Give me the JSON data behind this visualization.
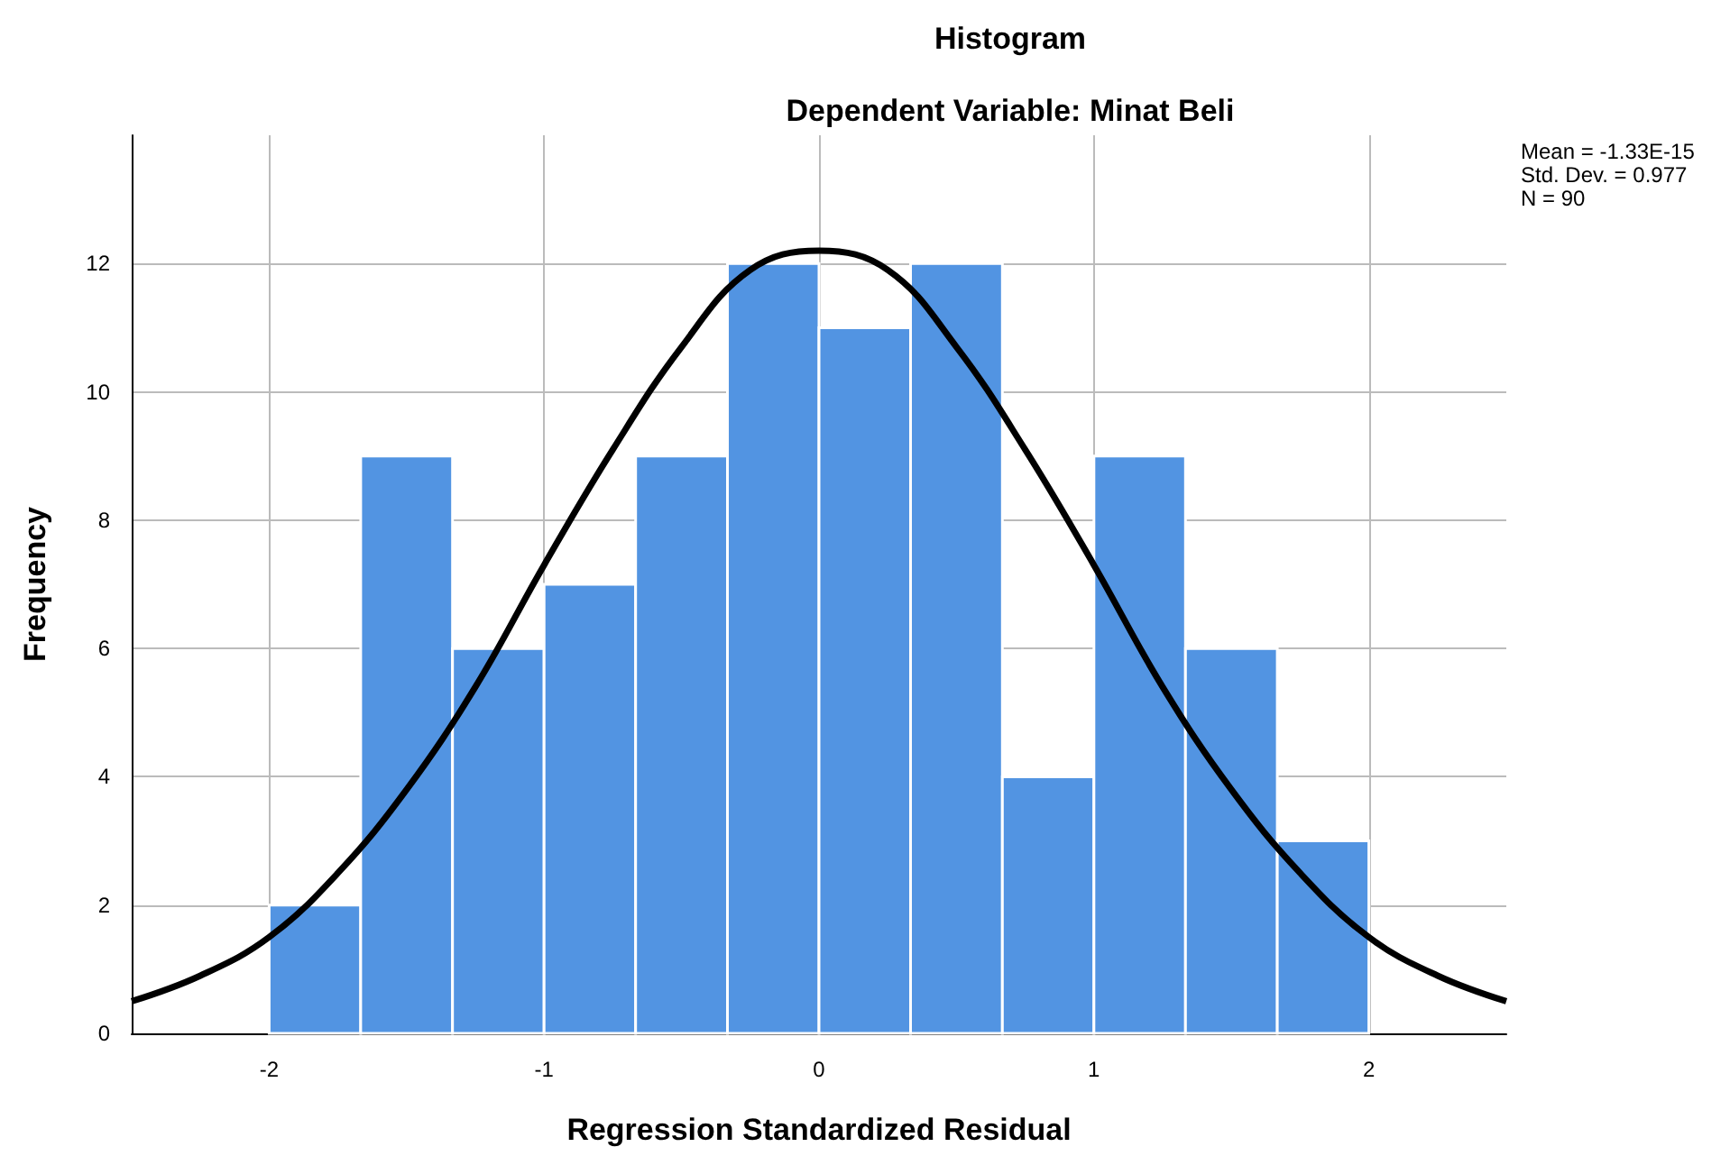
{
  "chart_data": {
    "type": "histogram",
    "title": "Histogram",
    "subtitle": "Dependent Variable: Minat Beli",
    "xlabel": "Regression Standardized Residual",
    "ylabel": "Frequency",
    "annotations": [
      "Mean = -1.33E-15",
      "Std. Dev. = 0.977",
      "N = 90"
    ],
    "series": [
      {
        "color": "#5294e2",
        "bins": [
          -2,
          -1.667,
          -1.333,
          -1,
          -0.667,
          -0.333,
          0,
          0.333,
          0.667,
          1,
          1.333,
          1.667,
          2
        ],
        "values": [
          2,
          9,
          6,
          7,
          9,
          12,
          11,
          12,
          4,
          9,
          6,
          3
        ]
      },
      {
        "type": "line",
        "color": "#000000",
        "x": [
          -2.5,
          -2.25,
          -2,
          -1.75,
          -1.5,
          -1.25,
          -1,
          -0.75,
          -0.5,
          -0.25,
          0,
          0.25,
          0.5,
          0.75,
          1,
          1.25,
          1.5,
          1.75,
          2,
          2.25,
          2.5
        ],
        "values": [
          0.5,
          0.9,
          1.5,
          2.5,
          3.8,
          5.4,
          7.3,
          9.1,
          10.7,
          11.9,
          12.2,
          11.9,
          10.7,
          9.1,
          7.3,
          5.4,
          3.8,
          2.5,
          1.5,
          0.9,
          0.5
        ]
      }
    ],
    "xlim": [
      -2.5,
      2.5
    ],
    "xticks": [
      -2,
      -1,
      0,
      1,
      2
    ],
    "ylim": [
      0,
      14
    ],
    "yticks": [
      0,
      2,
      4,
      6,
      8,
      10,
      12
    ],
    "grid": true
  }
}
